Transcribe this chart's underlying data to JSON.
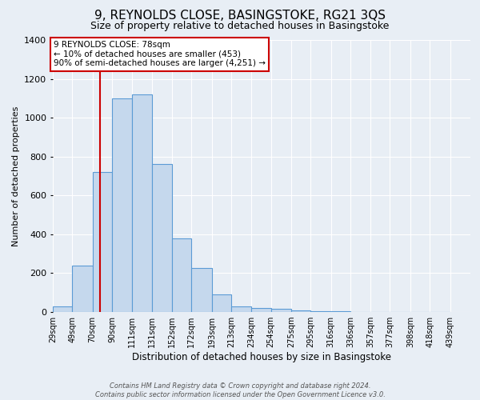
{
  "title": "9, REYNOLDS CLOSE, BASINGSTOKE, RG21 3QS",
  "subtitle": "Size of property relative to detached houses in Basingstoke",
  "xlabel": "Distribution of detached houses by size in Basingstoke",
  "ylabel": "Number of detached properties",
  "footer_line1": "Contains HM Land Registry data © Crown copyright and database right 2024.",
  "footer_line2": "Contains public sector information licensed under the Open Government Licence v3.0.",
  "bin_labels": [
    "29sqm",
    "49sqm",
    "70sqm",
    "90sqm",
    "111sqm",
    "131sqm",
    "152sqm",
    "172sqm",
    "193sqm",
    "213sqm",
    "234sqm",
    "254sqm",
    "275sqm",
    "295sqm",
    "316sqm",
    "336sqm",
    "357sqm",
    "377sqm",
    "398sqm",
    "418sqm",
    "439sqm"
  ],
  "bin_edges": [
    29,
    49,
    70,
    90,
    111,
    131,
    152,
    172,
    193,
    213,
    234,
    254,
    275,
    295,
    316,
    336,
    357,
    377,
    398,
    418,
    439
  ],
  "bar_values": [
    30,
    240,
    720,
    1100,
    1120,
    760,
    380,
    225,
    90,
    30,
    20,
    15,
    10,
    5,
    3,
    2,
    0,
    0,
    0,
    0
  ],
  "bar_color": "#c5d8ed",
  "bar_edge_color": "#5b9bd5",
  "red_line_x": 78,
  "ylim": [
    0,
    1400
  ],
  "yticks": [
    0,
    200,
    400,
    600,
    800,
    1000,
    1200,
    1400
  ],
  "annotation_title": "9 REYNOLDS CLOSE: 78sqm",
  "annotation_line1": "← 10% of detached houses are smaller (453)",
  "annotation_line2": "90% of semi-detached houses are larger (4,251) →",
  "annotation_box_color": "#ffffff",
  "annotation_box_edgecolor": "#cc0000",
  "bg_color": "#e8eef5",
  "grid_color": "#ffffff",
  "title_fontsize": 11,
  "subtitle_fontsize": 9
}
